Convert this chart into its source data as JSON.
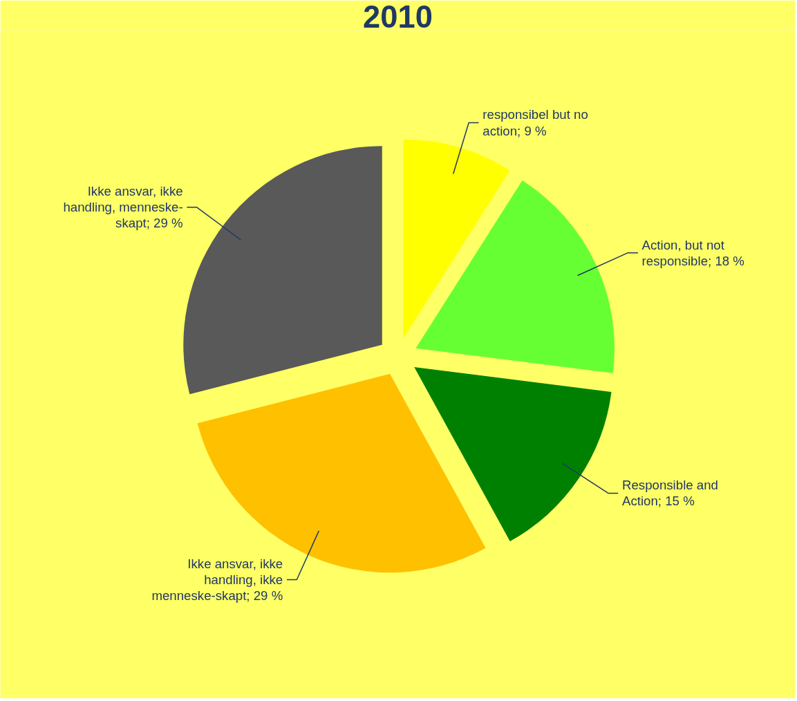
{
  "chart_data": {
    "type": "pie",
    "title": "2010",
    "categories": [
      "responsibel but no action",
      "Action, but not responsible",
      "Responsible and Action",
      "Ikke ansvar, ikke handling, ikke menneske-skapt",
      "Ikke ansvar, ikke handling, menneske-skapt"
    ],
    "values": [
      9,
      18,
      15,
      29,
      29
    ],
    "colors": [
      "#ffff00",
      "#66ff33",
      "#008000",
      "#ffc000",
      "#595959"
    ],
    "value_labels": [
      "9 %",
      "18 %",
      "15 %",
      "29 %",
      "29 %"
    ]
  }
}
